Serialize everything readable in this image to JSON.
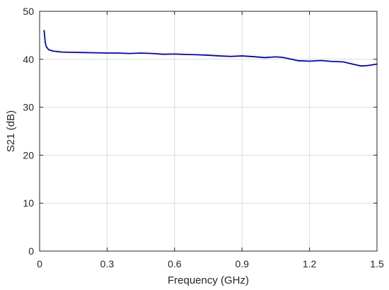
{
  "chart_data": {
    "type": "line",
    "title": "",
    "xlabel": "Frequency (GHz)",
    "ylabel": "S21 (dB)",
    "xlim": [
      0,
      1.5
    ],
    "ylim": [
      0,
      50
    ],
    "xticks": [
      0,
      0.3,
      0.6,
      0.9,
      1.2,
      1.5
    ],
    "xtick_labels": [
      "0",
      "0.3",
      "0.6",
      "0.9",
      "1.2",
      "1.5"
    ],
    "yticks": [
      0,
      10,
      20,
      30,
      40,
      50
    ],
    "ytick_labels": [
      "0",
      "10",
      "20",
      "30",
      "40",
      "50"
    ],
    "grid": true,
    "series": [
      {
        "color": "#0000cc",
        "x": [
          0.02,
          0.025,
          0.03,
          0.04,
          0.06,
          0.08,
          0.1,
          0.15,
          0.2,
          0.25,
          0.3,
          0.35,
          0.4,
          0.45,
          0.5,
          0.55,
          0.6,
          0.65,
          0.7,
          0.75,
          0.8,
          0.85,
          0.9,
          0.95,
          1.0,
          1.05,
          1.08,
          1.12,
          1.15,
          1.2,
          1.25,
          1.3,
          1.35,
          1.4,
          1.43,
          1.46,
          1.5
        ],
        "y": [
          46.0,
          43.5,
          42.6,
          42.0,
          41.7,
          41.6,
          41.5,
          41.45,
          41.4,
          41.35,
          41.3,
          41.3,
          41.2,
          41.3,
          41.2,
          41.05,
          41.1,
          41.0,
          40.95,
          40.85,
          40.7,
          40.6,
          40.7,
          40.55,
          40.35,
          40.5,
          40.4,
          40.0,
          39.7,
          39.6,
          39.75,
          39.55,
          39.45,
          38.9,
          38.6,
          38.7,
          39.0
        ]
      }
    ]
  }
}
